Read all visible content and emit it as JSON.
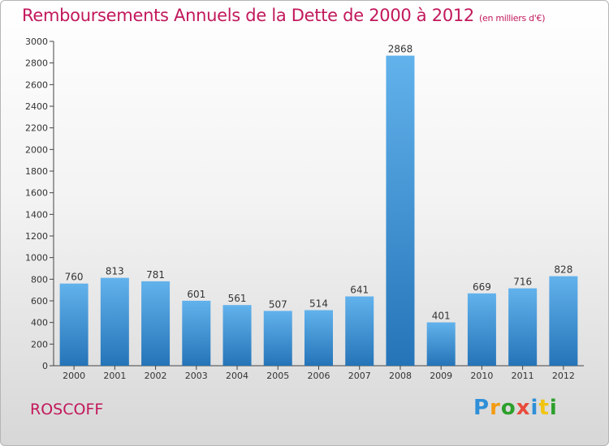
{
  "page": {
    "title": "Remboursements Annuels de la Dette de 2000 à 2012",
    "unit": "(en milliers d'€)",
    "city": "ROSCOFF",
    "logo": {
      "letters": [
        "P",
        "r",
        "o",
        "x",
        "i",
        "t",
        "i"
      ],
      "colors": [
        "#2f8fd8",
        "#f39c12",
        "#2ca02c",
        "#e74c3c",
        "#2f8fd8",
        "#f1c40f",
        "#2ca02c"
      ]
    }
  },
  "chart_data": {
    "type": "bar",
    "categories": [
      "2000",
      "2001",
      "2002",
      "2003",
      "2004",
      "2005",
      "2006",
      "2007",
      "2008",
      "2009",
      "2010",
      "2011",
      "2012"
    ],
    "values": [
      760,
      813,
      781,
      601,
      561,
      507,
      514,
      641,
      2868,
      401,
      669,
      716,
      828
    ],
    "ylim": [
      0,
      3000
    ],
    "yticks": [
      0,
      200,
      400,
      600,
      800,
      1000,
      1200,
      1400,
      1600,
      1800,
      2000,
      2200,
      2400,
      2600,
      2800,
      3000
    ],
    "bar_color": "#3f97dc",
    "grid": false
  }
}
